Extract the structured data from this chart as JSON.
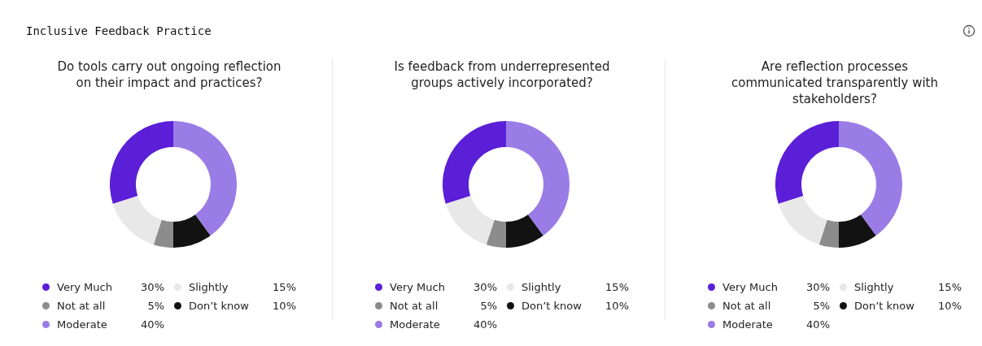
{
  "chart_data": [
    {
      "type": "other",
      "title": "Inclusive Feedback Practice"
    },
    {
      "type": "donut",
      "title": "Do tools carry out ongoing reflection on their impact and practices?",
      "categories": [
        "Very Much",
        "Slightly",
        "Not at all",
        "Don’t know",
        "Moderate"
      ],
      "values": [
        30,
        15,
        5,
        10,
        40
      ],
      "value_labels": [
        "30%",
        "15%",
        "5%",
        "10%",
        "40%"
      ],
      "colors": [
        "#5a1fd6",
        "#e8e8e8",
        "#8c8c8c",
        "#121212",
        "#9a7ce6"
      ],
      "legend": "bottom"
    },
    {
      "type": "donut",
      "title": "Is feedback from underrepresented groups actively incorporated?",
      "categories": [
        "Very Much",
        "Slightly",
        "Not at all",
        "Don’t know",
        "Moderate"
      ],
      "values": [
        30,
        15,
        5,
        10,
        40
      ],
      "value_labels": [
        "30%",
        "15%",
        "5%",
        "10%",
        "40%"
      ],
      "colors": [
        "#5a1fd6",
        "#e8e8e8",
        "#8c8c8c",
        "#121212",
        "#9a7ce6"
      ],
      "legend": "bottom"
    },
    {
      "type": "donut",
      "title": "Are reflection processes communicated transparently with stakeholders?",
      "categories": [
        "Very Much",
        "Slightly",
        "Not at all",
        "Don’t know",
        "Moderate"
      ],
      "values": [
        30,
        15,
        5,
        10,
        40
      ],
      "value_labels": [
        "30%",
        "15%",
        "5%",
        "10%",
        "40%"
      ],
      "colors": [
        "#5a1fd6",
        "#e8e8e8",
        "#8c8c8c",
        "#121212",
        "#9a7ce6"
      ],
      "legend": "bottom"
    }
  ]
}
